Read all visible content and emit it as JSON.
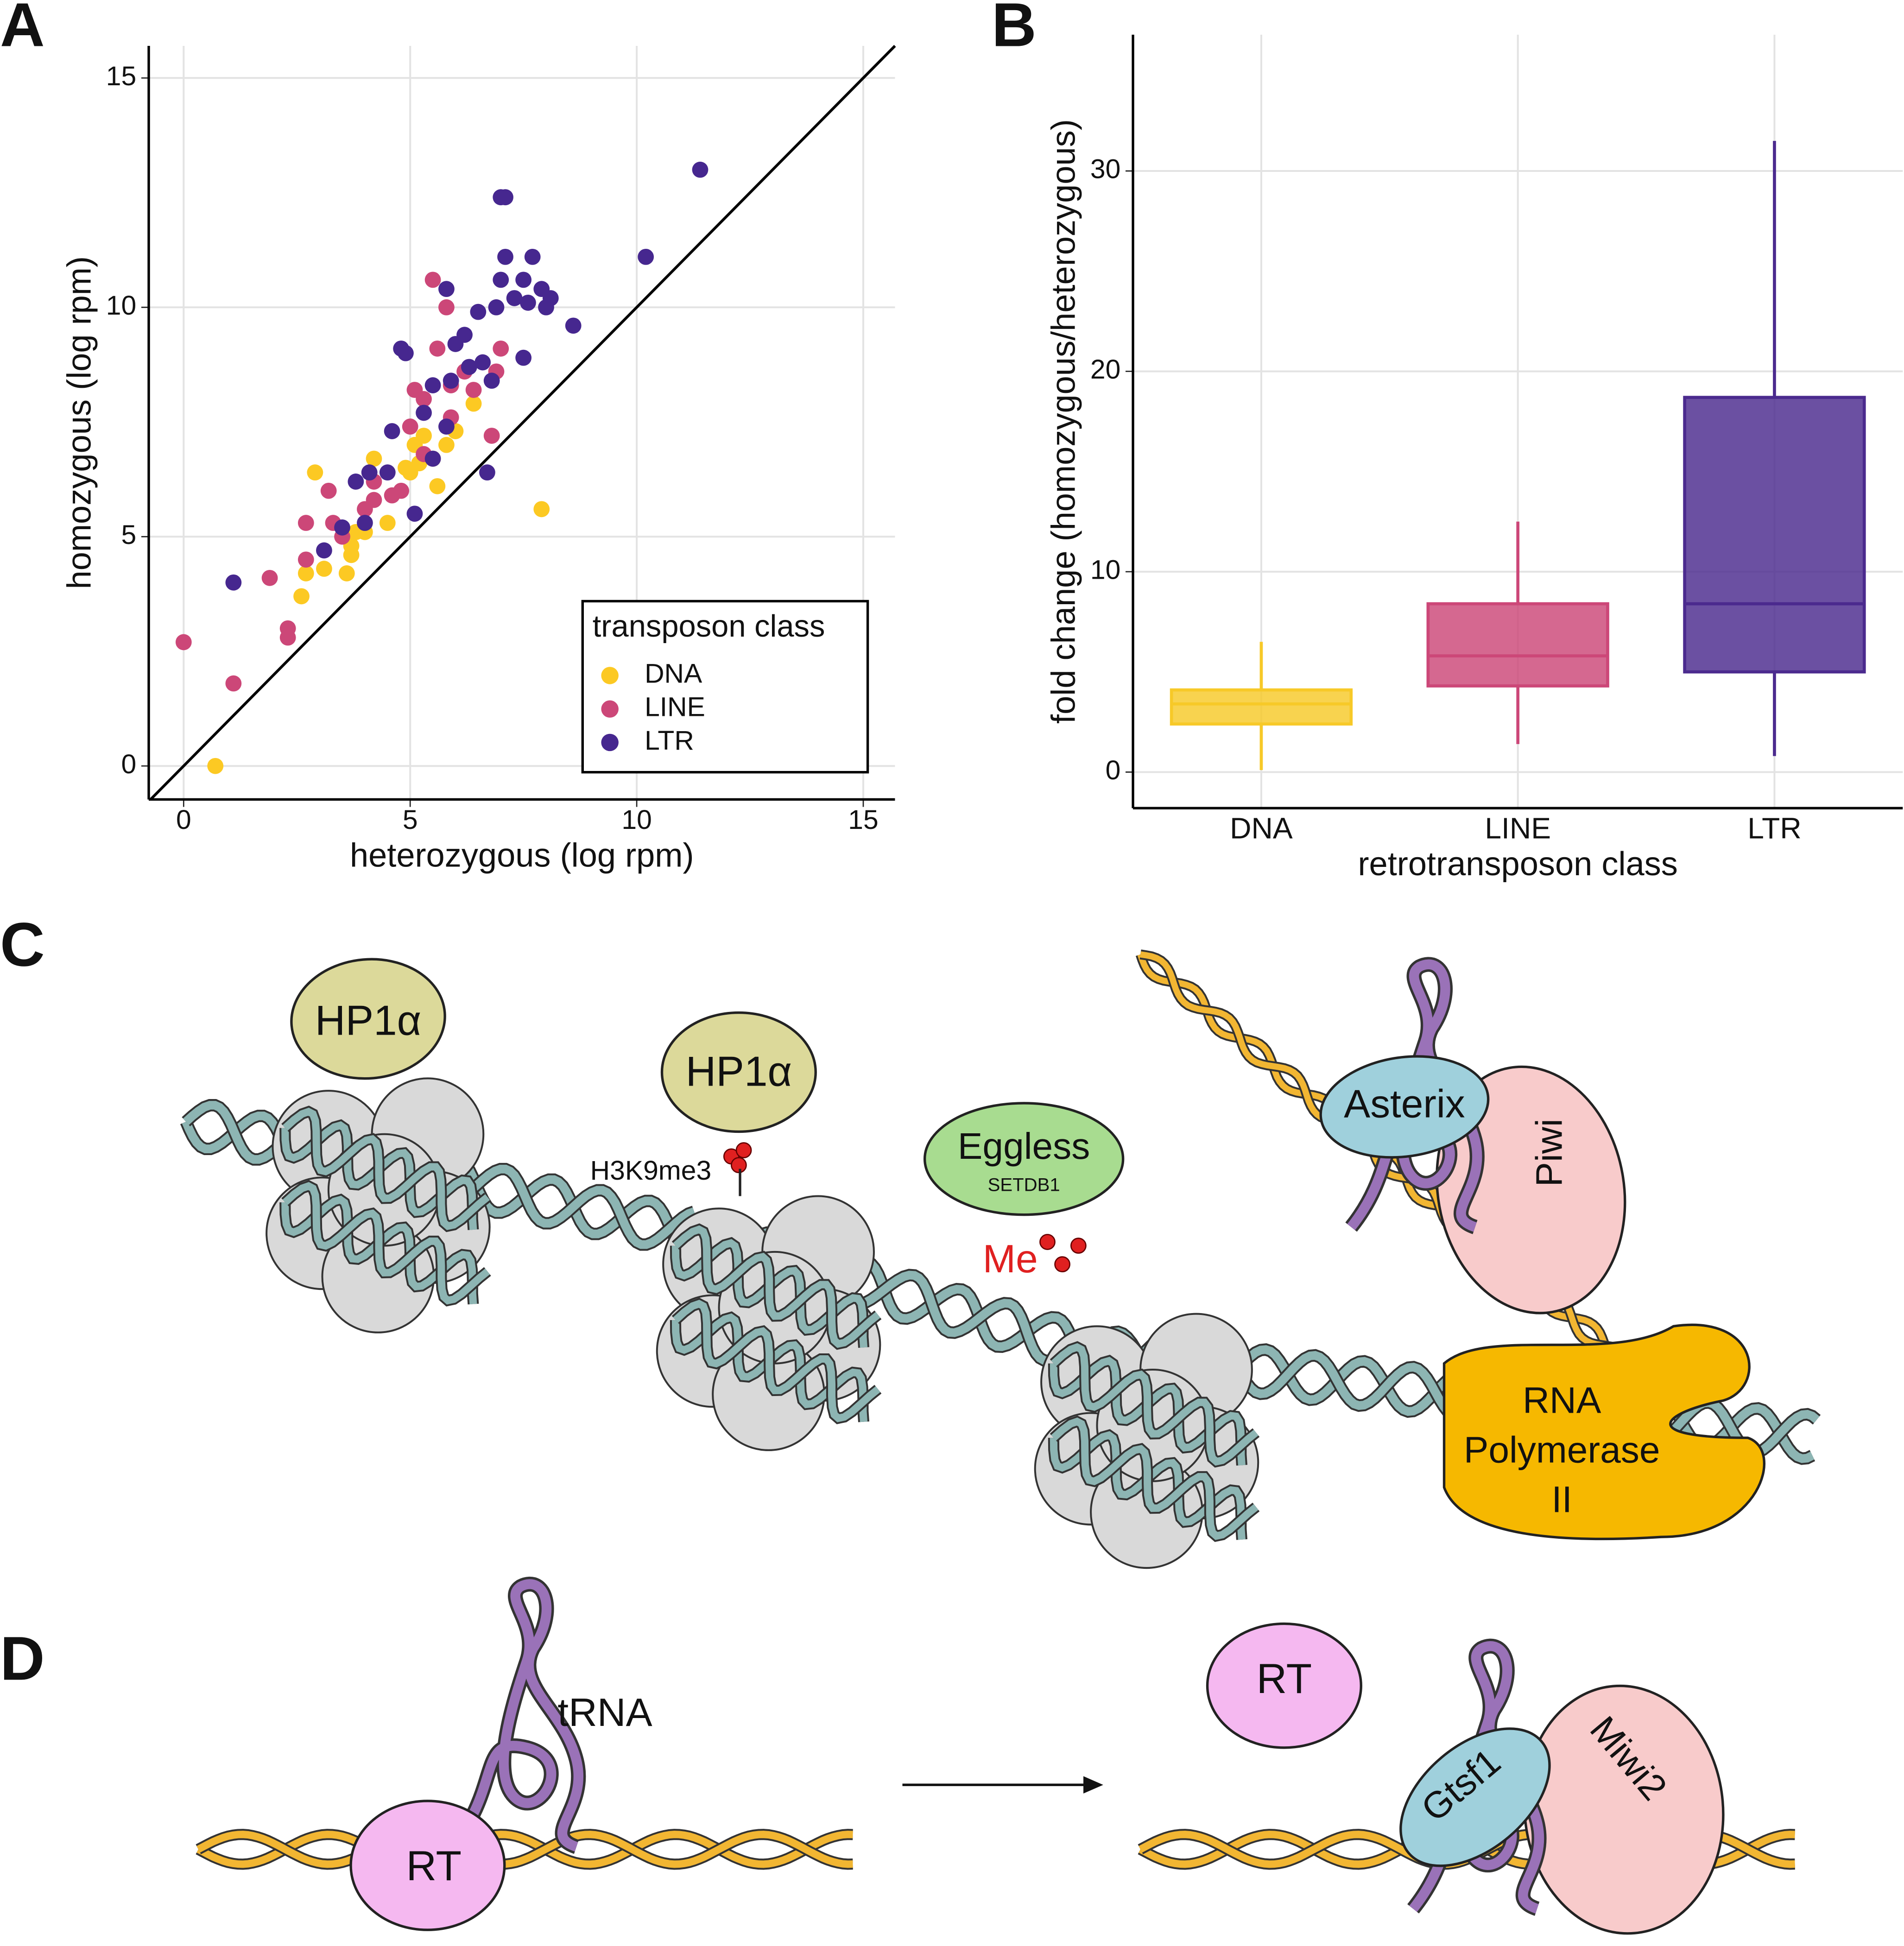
{
  "panel_labels": [
    "A",
    "B",
    "C",
    "D"
  ],
  "chart_data": [
    {
      "type": "scatter",
      "xlabel": "heterozygous (log rpm)",
      "ylabel": "homozygous (log rpm)",
      "xlim": [
        -0.77,
        15.7
      ],
      "ylim": [
        -0.73,
        15.7
      ],
      "xticks": [
        0,
        5,
        10,
        15
      ],
      "yticks": [
        0,
        5,
        10,
        15
      ],
      "grid": true,
      "identity_line": true,
      "legend_title": "transposon class",
      "legend_position": "bottom-right",
      "series": [
        {
          "name": "DNA",
          "color": "#fcc923",
          "x": [
            0.7,
            7.9,
            2.6,
            2.7,
            2.9,
            3.1,
            3.6,
            3.7,
            3.8,
            4.0,
            4.2,
            4.5,
            5.0,
            5.2,
            5.5,
            5.6,
            5.3,
            5.8,
            6.0,
            6.4,
            5.1,
            3.7,
            4.9
          ],
          "y": [
            0,
            5.6,
            3.7,
            4.2,
            6.4,
            4.3,
            4.2,
            4.6,
            5.1,
            5.1,
            6.7,
            5.3,
            6.4,
            6.6,
            6.7,
            6.1,
            7.2,
            7.0,
            7.3,
            7.9,
            7.0,
            4.8,
            6.5
          ]
        },
        {
          "name": "LINE",
          "color": "#cc4778",
          "x": [
            0,
            1.1,
            1.9,
            2.3,
            2.3,
            2.7,
            2.7,
            3.2,
            3.3,
            3.5,
            4.0,
            4.2,
            4.6,
            4.8,
            5.0,
            5.3,
            5.5,
            5.6,
            5.8,
            5.9,
            6.2,
            6.4,
            6.8,
            7.0,
            6.9,
            5.1,
            5.9,
            4.2,
            5.3
          ],
          "y": [
            2.7,
            1.8,
            4.1,
            2.8,
            3.0,
            5.3,
            4.5,
            6.0,
            5.3,
            5.0,
            5.6,
            5.8,
            5.9,
            6.0,
            7.4,
            8.0,
            10.6,
            9.1,
            10.0,
            8.3,
            8.6,
            8.2,
            7.2,
            9.1,
            8.6,
            8.2,
            7.6,
            6.2,
            6.8
          ]
        },
        {
          "name": "LTR",
          "color": "#46278f",
          "x": [
            1.1,
            3.1,
            3.5,
            3.8,
            4.1,
            4.0,
            4.6,
            4.5,
            4.8,
            4.9,
            5.1,
            5.3,
            5.5,
            5.5,
            5.8,
            5.9,
            6.0,
            6.2,
            6.3,
            6.5,
            6.6,
            6.7,
            6.9,
            7.0,
            7.1,
            7.1,
            7.0,
            7.3,
            7.6,
            7.7,
            7.5,
            7.9,
            8.0,
            8.1,
            8.6,
            7.5,
            10.2,
            11.4,
            6.8,
            5.8
          ],
          "y": [
            4.0,
            4.7,
            5.2,
            6.2,
            6.4,
            5.3,
            7.3,
            6.4,
            9.1,
            9.0,
            5.5,
            7.7,
            8.3,
            6.7,
            10.4,
            8.4,
            9.2,
            9.4,
            8.7,
            9.9,
            8.8,
            6.4,
            10.0,
            12.4,
            12.4,
            11.1,
            10.6,
            10.2,
            10.1,
            11.1,
            10.6,
            10.4,
            10.0,
            10.2,
            9.6,
            8.9,
            11.1,
            13.0,
            8.4,
            7.4
          ]
        }
      ]
    },
    {
      "type": "box",
      "xlabel": "retrotransposon class",
      "ylabel": "fold change (homozygous/heterozygous)",
      "categories": [
        "DNA",
        "LINE",
        "LTR"
      ],
      "colors": [
        "#f7c928",
        "#cc4778",
        "#4b2a8e"
      ],
      "min": [
        0.1,
        1.4,
        0.8
      ],
      "q1": [
        2.4,
        4.3,
        5.0
      ],
      "median": [
        3.4,
        5.8,
        8.4
      ],
      "q3": [
        4.1,
        8.4,
        18.7
      ],
      "max": [
        6.5,
        12.5,
        31.5
      ],
      "ylim": [
        -1.8,
        36.8
      ],
      "yticks": [
        0,
        10,
        20,
        30
      ],
      "grid": true
    }
  ],
  "diagram_c": {
    "hp1a_1": "HP1α",
    "hp1a_2": "HP1α",
    "h3k9me3": "H3K9me3",
    "eggless": "Eggless",
    "setdb1": "SETDB1",
    "me": "Me",
    "asterix": "Asterix",
    "piwi": "Piwi",
    "pol": [
      "RNA",
      "Polymerase",
      "II"
    ]
  },
  "diagram_d": {
    "rt_1": "RT",
    "trna": "tRNA",
    "rt_2": "RT",
    "gtsf1": "Gtsf1",
    "miwi2": "Miwi2"
  }
}
